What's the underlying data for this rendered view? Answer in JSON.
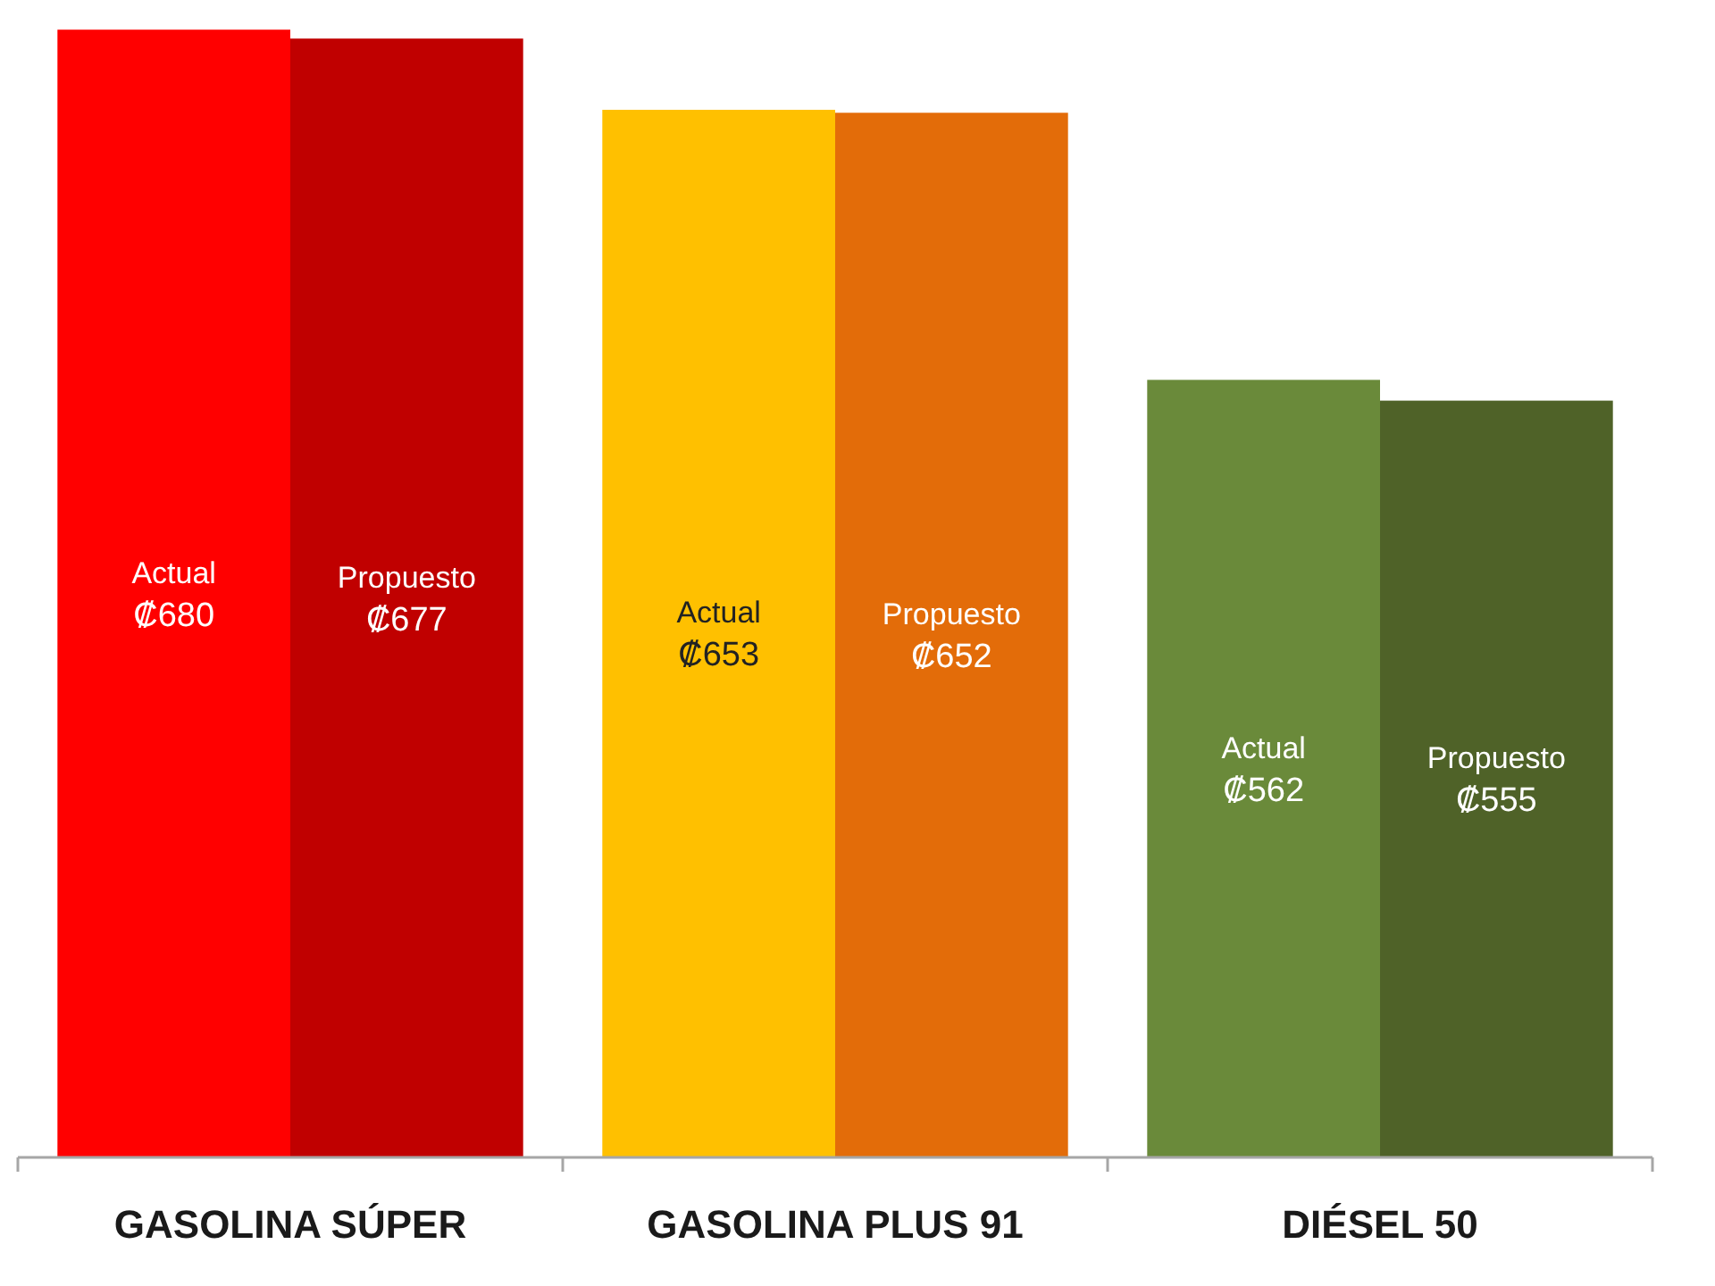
{
  "chart_data": {
    "type": "bar",
    "categories": [
      "GASOLINA SÚPER",
      "GASOLINA PLUS 91",
      "DIÉSEL 50"
    ],
    "series": [
      {
        "name": "Actual",
        "colors": [
          "#ff0000",
          "#ffc000",
          "#6a8a3a"
        ],
        "values": [
          680,
          653,
          562
        ],
        "value_labels": [
          "₡680",
          "₡653",
          "₡562"
        ]
      },
      {
        "name": "Propuesto",
        "colors": [
          "#c00000",
          "#e36c09",
          "#4f6228"
        ],
        "values": [
          677,
          652,
          555
        ],
        "value_labels": [
          "₡677",
          "₡652",
          "₡555"
        ]
      }
    ],
    "ylim": [
      300,
      690
    ],
    "tick_labels": "x"
  }
}
